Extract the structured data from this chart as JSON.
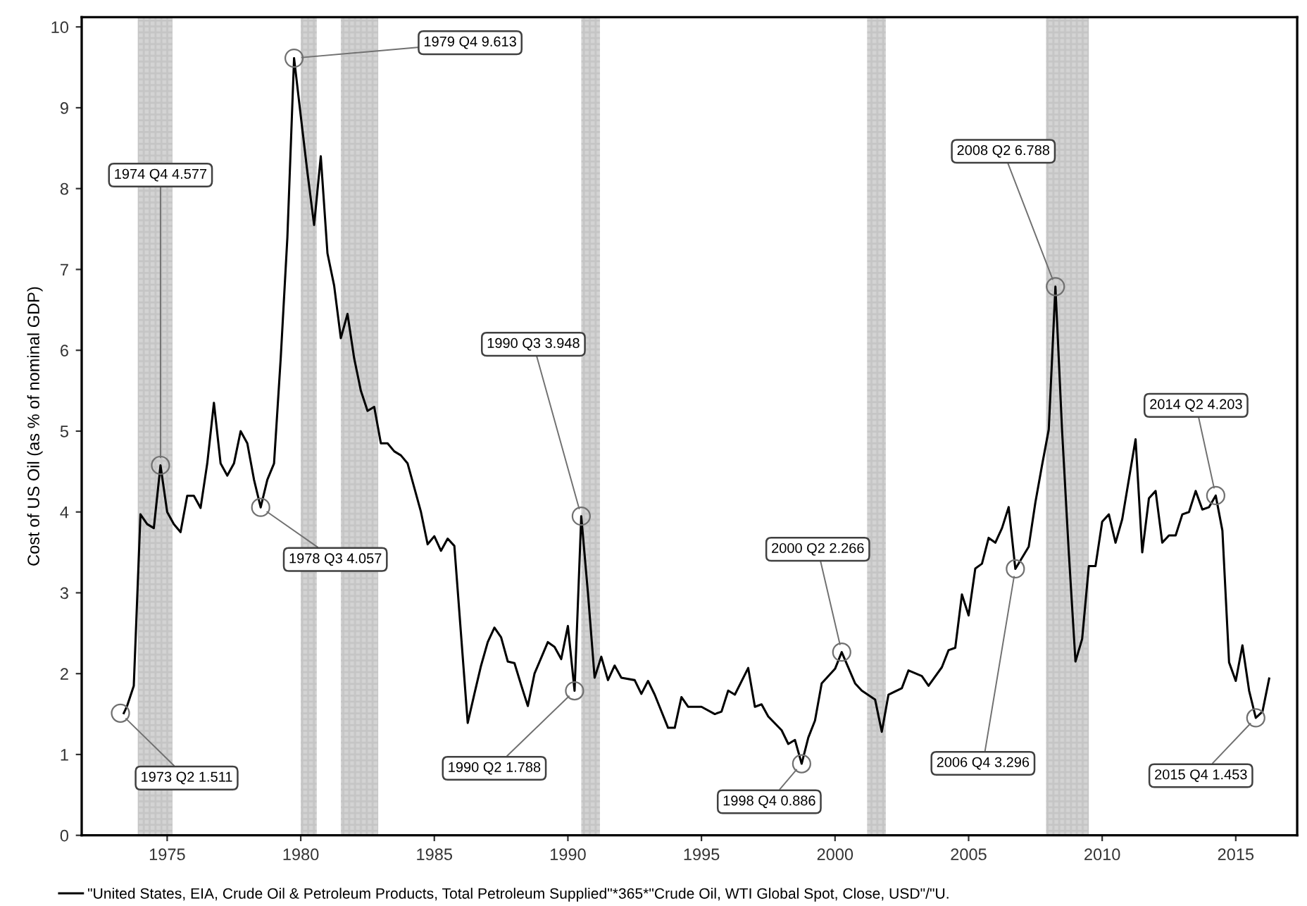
{
  "chart_data": {
    "type": "line",
    "ylabel": "Cost of US Oil (as % of nominal GDP)",
    "xlim": [
      1971.8,
      2017.3
    ],
    "ylim": [
      0,
      10.12
    ],
    "xticks": [
      1975,
      1980,
      1985,
      1990,
      1995,
      2000,
      2005,
      2010,
      2015
    ],
    "yticks": [
      0,
      1,
      2,
      3,
      4,
      5,
      6,
      7,
      8,
      9,
      10
    ],
    "grid": false,
    "legend": "bottom",
    "marker": "none",
    "line_style": "solid",
    "series": [
      {
        "name": "\"United States, EIA, Crude Oil & Petroleum Products, Total Petroleum Supplied\"*365*\"Crude Oil, WTI Global Spot, Close, USD\"/\"U.",
        "color": "#000000",
        "x": [
          1973.375,
          1973.5,
          1973.75,
          1974.0,
          1974.25,
          1974.5,
          1974.75,
          1975.0,
          1975.25,
          1975.5,
          1975.75,
          1976.0,
          1976.25,
          1976.5,
          1976.75,
          1977.0,
          1977.25,
          1977.5,
          1977.75,
          1978.0,
          1978.25,
          1978.5,
          1978.75,
          1979.0,
          1979.25,
          1979.5,
          1979.75,
          1980.0,
          1980.25,
          1980.5,
          1980.75,
          1981.0,
          1981.25,
          1981.5,
          1981.75,
          1982.0,
          1982.25,
          1982.5,
          1982.75,
          1983.0,
          1983.25,
          1983.5,
          1983.75,
          1984.0,
          1984.5,
          1984.75,
          1985.0,
          1985.25,
          1985.5,
          1985.75,
          1986.25,
          1986.5,
          1986.75,
          1987.0,
          1987.25,
          1987.5,
          1987.75,
          1988.0,
          1988.25,
          1988.5,
          1988.75,
          1989.25,
          1989.5,
          1989.75,
          1990.0,
          1990.25,
          1990.5,
          1990.75,
          1991.0,
          1991.25,
          1991.5,
          1991.75,
          1992.0,
          1992.5,
          1992.75,
          1993.0,
          1993.25,
          1993.75,
          1994.0,
          1994.25,
          1994.5,
          1995.0,
          1995.5,
          1995.75,
          1996.0,
          1996.25,
          1996.75,
          1997.0,
          1997.25,
          1997.5,
          1998.0,
          1998.25,
          1998.5,
          1998.75,
          1999.0,
          1999.25,
          1999.5,
          2000.0,
          2000.25,
          2000.75,
          2001.0,
          2001.5,
          2001.75,
          2002.0,
          2002.5,
          2002.75,
          2003.25,
          2003.5,
          2004.0,
          2004.25,
          2004.5,
          2004.75,
          2005.0,
          2005.25,
          2005.5,
          2005.75,
          2006.0,
          2006.25,
          2006.5,
          2006.75,
          2007.25,
          2007.5,
          2007.75,
          2008.0,
          2008.25,
          2008.5,
          2008.75,
          2009.0,
          2009.25,
          2009.5,
          2009.75,
          2010.0,
          2010.25,
          2010.5,
          2010.75,
          2011.25,
          2011.5,
          2011.75,
          2012.0,
          2012.25,
          2012.5,
          2012.75,
          2013.0,
          2013.25,
          2013.5,
          2013.75,
          2014.0,
          2014.25,
          2014.5,
          2014.75,
          2015.0,
          2015.25,
          2015.5,
          2015.75,
          2016.0,
          2016.25
        ],
        "values": [
          1.511,
          1.6,
          1.85,
          3.97,
          3.85,
          3.8,
          4.577,
          4.0,
          3.85,
          3.75,
          4.2,
          4.2,
          4.05,
          4.6,
          5.35,
          4.6,
          4.45,
          4.6,
          5.0,
          4.85,
          4.4,
          4.057,
          4.4,
          4.6,
          5.9,
          7.4,
          9.613,
          8.9,
          8.2,
          7.55,
          8.4,
          7.2,
          6.8,
          6.15,
          6.45,
          5.9,
          5.5,
          5.25,
          5.3,
          4.85,
          4.85,
          4.75,
          4.7,
          4.6,
          4.0,
          3.6,
          3.7,
          3.52,
          3.67,
          3.58,
          1.39,
          1.75,
          2.1,
          2.39,
          2.57,
          2.45,
          2.15,
          2.13,
          1.86,
          1.6,
          2.0,
          2.39,
          2.33,
          2.18,
          2.59,
          1.788,
          3.948,
          3.0,
          1.95,
          2.21,
          1.92,
          2.1,
          1.95,
          1.92,
          1.75,
          1.91,
          1.74,
          1.33,
          1.33,
          1.71,
          1.59,
          1.59,
          1.5,
          1.53,
          1.79,
          1.74,
          2.07,
          1.59,
          1.62,
          1.47,
          1.3,
          1.13,
          1.18,
          0.886,
          1.21,
          1.42,
          1.88,
          2.06,
          2.266,
          1.88,
          1.79,
          1.68,
          1.28,
          1.74,
          1.82,
          2.04,
          1.97,
          1.85,
          2.08,
          2.29,
          2.32,
          2.98,
          2.72,
          3.3,
          3.36,
          3.68,
          3.62,
          3.8,
          4.06,
          3.296,
          3.57,
          4.12,
          4.58,
          5.02,
          6.788,
          5.0,
          3.5,
          2.15,
          2.43,
          3.33,
          3.33,
          3.88,
          3.97,
          3.62,
          3.91,
          4.9,
          3.5,
          4.17,
          4.26,
          3.62,
          3.71,
          3.71,
          3.97,
          4.0,
          4.26,
          4.03,
          4.06,
          4.203,
          3.77,
          2.14,
          1.91,
          2.35,
          1.79,
          1.453,
          1.53,
          1.94
        ]
      }
    ],
    "bands": [
      {
        "axis": "x",
        "from": 1973.9,
        "to": 1975.2,
        "color": "#b0b0b0"
      },
      {
        "axis": "x",
        "from": 1980.0,
        "to": 1980.6,
        "color": "#b0b0b0"
      },
      {
        "axis": "x",
        "from": 1981.5,
        "to": 1982.9,
        "color": "#b0b0b0"
      },
      {
        "axis": "x",
        "from": 1990.5,
        "to": 1991.2,
        "color": "#b0b0b0"
      },
      {
        "axis": "x",
        "from": 2001.2,
        "to": 2001.9,
        "color": "#b0b0b0"
      },
      {
        "axis": "x",
        "from": 2007.9,
        "to": 2009.5,
        "color": "#b0b0b0"
      }
    ],
    "annotations": [
      {
        "text": "1973 Q2 1.511",
        "x": 1973.25,
        "y": 1.511
      },
      {
        "text": "1974 Q4 4.577",
        "x": 1974.75,
        "y": 4.577
      },
      {
        "text": "1979 Q4 9.613",
        "x": 1979.75,
        "y": 9.613
      },
      {
        "text": "1978 Q3 4.057",
        "x": 1978.5,
        "y": 4.057
      },
      {
        "text": "1990 Q3 3.948",
        "x": 1990.5,
        "y": 3.948
      },
      {
        "text": "1990 Q2 1.788",
        "x": 1990.25,
        "y": 1.788
      },
      {
        "text": "1998 Q4 0.886",
        "x": 1998.75,
        "y": 0.886
      },
      {
        "text": "2000 Q2 2.266",
        "x": 2000.25,
        "y": 2.266
      },
      {
        "text": "2006 Q4 3.296",
        "x": 2006.75,
        "y": 3.296
      },
      {
        "text": "2008 Q2 6.788",
        "x": 2008.25,
        "y": 6.788
      },
      {
        "text": "2014 Q2 4.203",
        "x": 2014.25,
        "y": 4.203
      },
      {
        "text": "2015 Q4 1.453",
        "x": 2015.75,
        "y": 1.453
      }
    ]
  }
}
